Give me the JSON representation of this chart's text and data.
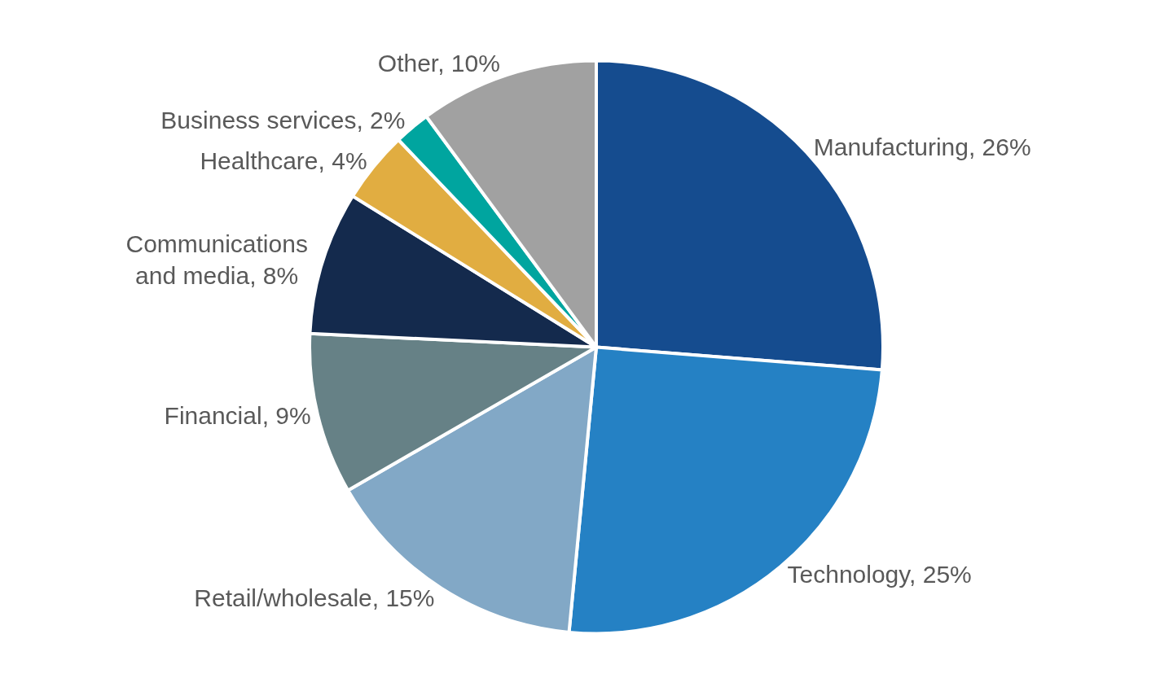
{
  "chart_data": {
    "type": "pie",
    "categories": [
      "Manufacturing",
      "Technology",
      "Retail/wholesale",
      "Financial",
      "Communications and media",
      "Healthcare",
      "Business services",
      "Other"
    ],
    "values": [
      26,
      25,
      15,
      9,
      8,
      4,
      2,
      10
    ],
    "value_labels": [
      "26%",
      "25%",
      "15%",
      "9%",
      "8%",
      "4%",
      "2%",
      "10%"
    ],
    "colors": [
      "#154c8f",
      "#2581c4",
      "#82a8c6",
      "#668186",
      "#142a4d",
      "#e1ad41",
      "#00a59f",
      "#a1a1a1"
    ],
    "legend": false
  }
}
